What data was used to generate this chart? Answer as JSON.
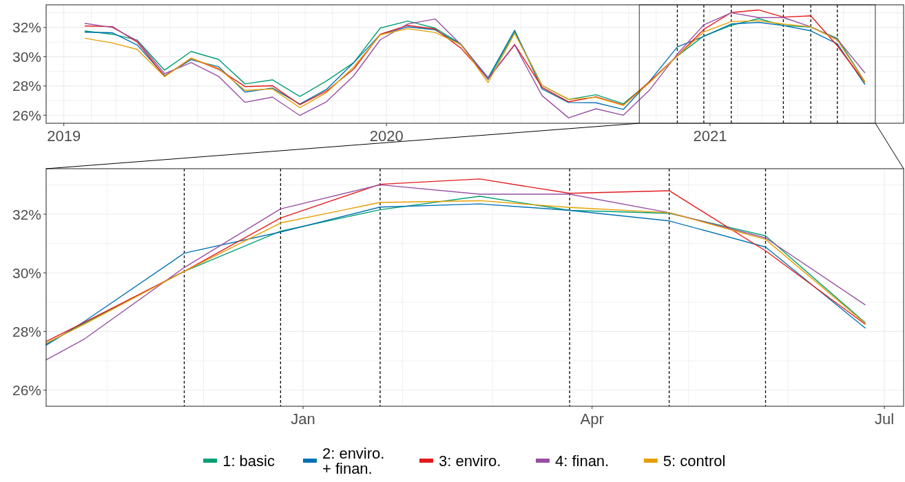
{
  "chart_data": [
    {
      "type": "line",
      "x": [
        "2019-01-25",
        "2019-02-25",
        "2019-03-25",
        "2019-04-25",
        "2019-05-25",
        "2019-06-25",
        "2019-07-25",
        "2019-08-25",
        "2019-09-25",
        "2019-10-25",
        "2019-11-25",
        "2019-12-25",
        "2020-01-25",
        "2020-02-25",
        "2020-03-25",
        "2020-04-25",
        "2020-05-25",
        "2020-06-25",
        "2020-07-25",
        "2020-08-25",
        "2020-09-25",
        "2020-10-25",
        "2020-11-25",
        "2020-12-25",
        "2021-01-25",
        "2021-02-25",
        "2021-03-25",
        "2021-04-25",
        "2021-05-25",
        "2021-06-25"
      ],
      "series": [
        {
          "color": "#009e73",
          "values": [
            31.76,
            31.54,
            31.14,
            29.08,
            30.36,
            29.82,
            28.14,
            28.42,
            27.28,
            28.34,
            29.6,
            31.96,
            32.44,
            31.96,
            30.88,
            28.44,
            31.69,
            28.04,
            27.08,
            27.4,
            26.79,
            28.29,
            30.05,
            31.42,
            32.15,
            32.61,
            32.13,
            32.03,
            31.26,
            28.3
          ]
        },
        {
          "color": "#0072b2",
          "values": [
            31.68,
            31.64,
            30.8,
            28.7,
            29.8,
            29.32,
            27.58,
            27.86,
            26.76,
            27.76,
            29.6,
            31.52,
            32.04,
            31.84,
            30.84,
            28.56,
            31.81,
            27.8,
            26.87,
            26.85,
            26.4,
            28.35,
            30.67,
            31.39,
            32.24,
            32.35,
            32.13,
            31.77,
            30.88,
            28.12
          ]
        },
        {
          "color": "#e41a1c",
          "values": [
            32.1,
            32.06,
            31.0,
            28.66,
            29.9,
            29.14,
            27.96,
            28.02,
            26.72,
            27.64,
            29.16,
            31.54,
            32.14,
            31.9,
            30.6,
            28.5,
            30.84,
            27.9,
            26.92,
            27.26,
            26.7,
            28.32,
            30.05,
            31.87,
            33.02,
            33.2,
            32.71,
            32.8,
            30.75,
            28.25
          ]
        },
        {
          "color": "#984ea3",
          "values": [
            32.28,
            32.0,
            31.1,
            28.84,
            29.6,
            28.66,
            26.88,
            27.24,
            25.98,
            26.92,
            28.7,
            31.16,
            32.24,
            32.58,
            30.84,
            28.5,
            30.8,
            27.34,
            25.82,
            26.44,
            26.0,
            27.75,
            30.18,
            32.18,
            33.0,
            32.68,
            32.68,
            32.05,
            31.19,
            28.91
          ]
        },
        {
          "color": "#e69f00",
          "values": [
            31.26,
            30.94,
            30.5,
            28.64,
            29.9,
            29.2,
            27.7,
            27.8,
            26.52,
            27.54,
            29.3,
            31.5,
            31.92,
            31.66,
            30.84,
            28.24,
            31.6,
            28.04,
            27.08,
            27.22,
            26.67,
            28.25,
            30.05,
            31.7,
            32.4,
            32.46,
            32.23,
            32.05,
            31.14,
            28.28
          ]
        }
      ],
      "xlim": [
        "2018-12-12",
        "2021-08-08"
      ],
      "xticks": [
        {
          "value": "2019-01-01",
          "label": "2019"
        },
        {
          "value": "2019-02-01",
          "label": null
        },
        {
          "value": "2019-03-01",
          "label": null
        },
        {
          "value": "2019-04-01",
          "label": null
        },
        {
          "value": "2019-05-01",
          "label": null
        },
        {
          "value": "2019-06-01",
          "label": null
        },
        {
          "value": "2019-07-01",
          "label": null
        },
        {
          "value": "2019-08-01",
          "label": null
        },
        {
          "value": "2019-09-01",
          "label": null
        },
        {
          "value": "2019-10-01",
          "label": null
        },
        {
          "value": "2019-11-01",
          "label": null
        },
        {
          "value": "2019-12-01",
          "label": null
        },
        {
          "value": "2020-01-01",
          "label": "2020"
        },
        {
          "value": "2020-02-01",
          "label": null
        },
        {
          "value": "2020-03-01",
          "label": null
        },
        {
          "value": "2020-04-01",
          "label": null
        },
        {
          "value": "2020-05-01",
          "label": null
        },
        {
          "value": "2020-06-01",
          "label": null
        },
        {
          "value": "2020-07-01",
          "label": null
        },
        {
          "value": "2020-08-01",
          "label": null
        },
        {
          "value": "2020-09-01",
          "label": null
        },
        {
          "value": "2020-10-01",
          "label": null
        },
        {
          "value": "2020-11-01",
          "label": null
        },
        {
          "value": "2020-12-01",
          "label": null
        },
        {
          "value": "2021-01-01",
          "label": "2021"
        },
        {
          "value": "2021-02-01",
          "label": null
        },
        {
          "value": "2021-03-01",
          "label": null
        },
        {
          "value": "2021-04-01",
          "label": null
        },
        {
          "value": "2021-05-01",
          "label": null
        },
        {
          "value": "2021-06-01",
          "label": null
        },
        {
          "value": "2021-07-01",
          "label": null
        },
        {
          "value": "2021-08-01",
          "label": null
        }
      ],
      "ylim": [
        25.45,
        33.55
      ],
      "yticks": [
        {
          "value": 26,
          "label": "26%"
        },
        {
          "value": 27,
          "label": null
        },
        {
          "value": 28,
          "label": "28%"
        },
        {
          "value": 29,
          "label": null
        },
        {
          "value": 30,
          "label": "30%"
        },
        {
          "value": 31,
          "label": null
        },
        {
          "value": 32,
          "label": "32%"
        },
        {
          "value": 33,
          "label": null
        }
      ],
      "grid": true,
      "ref_lines": [
        {
          "axis": "x",
          "value": "2020-11-25",
          "color": "#000000",
          "line_style": "dashed"
        },
        {
          "axis": "x",
          "value": "2020-12-25",
          "color": "#000000",
          "line_style": "dashed"
        },
        {
          "axis": "x",
          "value": "2021-01-25",
          "color": "#000000",
          "line_style": "dashed"
        },
        {
          "axis": "x",
          "value": "2021-03-25",
          "color": "#000000",
          "line_style": "dashed"
        },
        {
          "axis": "x",
          "value": "2021-04-25",
          "color": "#000000",
          "line_style": "dashed"
        },
        {
          "axis": "x",
          "value": "2021-05-25",
          "color": "#000000",
          "line_style": "dashed"
        }
      ]
    },
    {
      "type": "line",
      "x": [
        "2020-10-13",
        "2020-10-25",
        "2020-11-25",
        "2020-12-25",
        "2021-01-25",
        "2021-02-25",
        "2021-03-25",
        "2021-04-25",
        "2021-05-25",
        "2021-06-25"
      ],
      "series": [
        {
          "name": "1: basic",
          "color": "#009e73",
          "values": [
            27.57,
            28.29,
            30.05,
            31.42,
            32.15,
            32.61,
            32.13,
            32.03,
            31.26,
            28.3
          ]
        },
        {
          "name": "2: enviro.\n+ finan.",
          "color": "#0072b2",
          "values": [
            27.53,
            28.35,
            30.67,
            31.39,
            32.24,
            32.35,
            32.13,
            31.77,
            30.88,
            28.12
          ]
        },
        {
          "name": "3: enviro.",
          "color": "#e41a1c",
          "values": [
            27.66,
            28.32,
            30.05,
            31.87,
            33.02,
            33.2,
            32.71,
            32.8,
            30.75,
            28.25
          ]
        },
        {
          "name": "4: finan.",
          "color": "#984ea3",
          "values": [
            27.03,
            27.75,
            30.18,
            32.18,
            33.0,
            32.68,
            32.68,
            32.05,
            31.19,
            28.91
          ]
        },
        {
          "name": "5: control",
          "color": "#e69f00",
          "values": [
            27.6,
            28.25,
            30.05,
            31.7,
            32.4,
            32.46,
            32.23,
            32.05,
            31.14,
            28.28
          ]
        }
      ],
      "xlim": [
        "2020-10-13",
        "2021-07-07"
      ],
      "xticks": [
        {
          "value": "2020-11-01",
          "label": null
        },
        {
          "value": "2020-12-01",
          "label": null
        },
        {
          "value": "2021-01-01",
          "label": "Jan"
        },
        {
          "value": "2021-02-01",
          "label": null
        },
        {
          "value": "2021-03-01",
          "label": null
        },
        {
          "value": "2021-04-01",
          "label": "Apr"
        },
        {
          "value": "2021-05-01",
          "label": null
        },
        {
          "value": "2021-06-01",
          "label": null
        },
        {
          "value": "2021-07-01",
          "label": "Jul"
        }
      ],
      "ylim": [
        25.45,
        33.55
      ],
      "yticks": [
        {
          "value": 26,
          "label": "26%"
        },
        {
          "value": 27,
          "label": null
        },
        {
          "value": 28,
          "label": "28%"
        },
        {
          "value": 29,
          "label": null
        },
        {
          "value": 30,
          "label": "30%"
        },
        {
          "value": 31,
          "label": null
        },
        {
          "value": 32,
          "label": "32%"
        },
        {
          "value": 33,
          "label": null
        }
      ],
      "grid": true,
      "legend": "bottom",
      "ref_lines": [
        {
          "axis": "x",
          "value": "2020-11-25",
          "color": "#000000",
          "line_style": "dashed"
        },
        {
          "axis": "x",
          "value": "2020-12-25",
          "color": "#000000",
          "line_style": "dashed"
        },
        {
          "axis": "x",
          "value": "2021-01-25",
          "color": "#000000",
          "line_style": "dashed"
        },
        {
          "axis": "x",
          "value": "2021-03-25",
          "color": "#000000",
          "line_style": "dashed"
        },
        {
          "axis": "x",
          "value": "2021-04-25",
          "color": "#000000",
          "line_style": "dashed"
        },
        {
          "axis": "x",
          "value": "2021-05-25",
          "color": "#000000",
          "line_style": "dashed"
        }
      ]
    }
  ]
}
